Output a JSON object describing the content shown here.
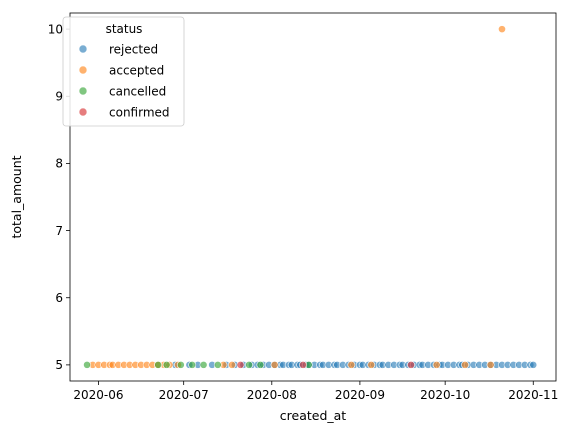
{
  "chart_data": {
    "type": "scatter",
    "xlabel": "created_at",
    "ylabel": "total_amount",
    "xlim": [
      "2020-05-22",
      "2020-11-09"
    ],
    "ylim": [
      4.76,
      10.24
    ],
    "x_ticks": [
      {
        "date": "2020-06-01",
        "label": "2020-06"
      },
      {
        "date": "2020-07-01",
        "label": "2020-07"
      },
      {
        "date": "2020-08-01",
        "label": "2020-08"
      },
      {
        "date": "2020-09-01",
        "label": "2020-09"
      },
      {
        "date": "2020-10-01",
        "label": "2020-10"
      },
      {
        "date": "2020-11-01",
        "label": "2020-11"
      }
    ],
    "y_ticks": [
      5,
      6,
      7,
      8,
      9,
      10
    ],
    "grid": false,
    "legend": {
      "title": "status",
      "placement": "top-left",
      "entries": [
        "rejected",
        "accepted",
        "cancelled",
        "confirmed"
      ]
    },
    "series": [
      {
        "name": "rejected",
        "color": "#1f77b4",
        "points": [
          {
            "x": "2020-06-28",
            "y": 5
          },
          {
            "x": "2020-07-03",
            "y": 5
          },
          {
            "x": "2020-07-06",
            "y": 5
          },
          {
            "x": "2020-07-11",
            "y": 5
          },
          {
            "x": "2020-07-16",
            "y": 5
          },
          {
            "x": "2020-07-19",
            "y": 5
          },
          {
            "x": "2020-07-22",
            "y": 5
          },
          {
            "x": "2020-07-25",
            "y": 5
          },
          {
            "x": "2020-07-27",
            "y": 5
          },
          {
            "x": "2020-07-29",
            "y": 5
          },
          {
            "x": "2020-07-31",
            "y": 5
          },
          {
            "x": "2020-08-02",
            "y": 5
          },
          {
            "x": "2020-08-04",
            "y": 5
          },
          {
            "x": "2020-08-05",
            "y": 5
          },
          {
            "x": "2020-08-07",
            "y": 5
          },
          {
            "x": "2020-08-08",
            "y": 5
          },
          {
            "x": "2020-08-10",
            "y": 5
          },
          {
            "x": "2020-08-11",
            "y": 5
          },
          {
            "x": "2020-08-13",
            "y": 5
          },
          {
            "x": "2020-08-14",
            "y": 5
          },
          {
            "x": "2020-08-16",
            "y": 5
          },
          {
            "x": "2020-08-18",
            "y": 5
          },
          {
            "x": "2020-08-19",
            "y": 5
          },
          {
            "x": "2020-08-21",
            "y": 5
          },
          {
            "x": "2020-08-23",
            "y": 5
          },
          {
            "x": "2020-08-24",
            "y": 5
          },
          {
            "x": "2020-08-26",
            "y": 5
          },
          {
            "x": "2020-08-28",
            "y": 5
          },
          {
            "x": "2020-08-30",
            "y": 5
          },
          {
            "x": "2020-09-01",
            "y": 5
          },
          {
            "x": "2020-09-02",
            "y": 5
          },
          {
            "x": "2020-09-04",
            "y": 5
          },
          {
            "x": "2020-09-06",
            "y": 5
          },
          {
            "x": "2020-09-08",
            "y": 5
          },
          {
            "x": "2020-09-09",
            "y": 5
          },
          {
            "x": "2020-09-11",
            "y": 5
          },
          {
            "x": "2020-09-13",
            "y": 5
          },
          {
            "x": "2020-09-15",
            "y": 5
          },
          {
            "x": "2020-09-16",
            "y": 5
          },
          {
            "x": "2020-09-18",
            "y": 5
          },
          {
            "x": "2020-09-20",
            "y": 5
          },
          {
            "x": "2020-09-22",
            "y": 5
          },
          {
            "x": "2020-09-23",
            "y": 5
          },
          {
            "x": "2020-09-25",
            "y": 5
          },
          {
            "x": "2020-09-27",
            "y": 5
          },
          {
            "x": "2020-09-29",
            "y": 5
          },
          {
            "x": "2020-09-30",
            "y": 5
          },
          {
            "x": "2020-10-02",
            "y": 5
          },
          {
            "x": "2020-10-04",
            "y": 5
          },
          {
            "x": "2020-10-06",
            "y": 5
          },
          {
            "x": "2020-10-07",
            "y": 5
          },
          {
            "x": "2020-10-09",
            "y": 5
          },
          {
            "x": "2020-10-11",
            "y": 5
          },
          {
            "x": "2020-10-13",
            "y": 5
          },
          {
            "x": "2020-10-15",
            "y": 5
          },
          {
            "x": "2020-10-17",
            "y": 5
          },
          {
            "x": "2020-10-19",
            "y": 5
          },
          {
            "x": "2020-10-21",
            "y": 5
          },
          {
            "x": "2020-10-23",
            "y": 5
          },
          {
            "x": "2020-10-25",
            "y": 5
          },
          {
            "x": "2020-10-27",
            "y": 5
          },
          {
            "x": "2020-10-29",
            "y": 5
          },
          {
            "x": "2020-10-31",
            "y": 5
          },
          {
            "x": "2020-11-01",
            "y": 5
          }
        ]
      },
      {
        "name": "accepted",
        "color": "#ff7f0e",
        "points": [
          {
            "x": "2020-05-30",
            "y": 5
          },
          {
            "x": "2020-06-01",
            "y": 5
          },
          {
            "x": "2020-06-03",
            "y": 5
          },
          {
            "x": "2020-06-05",
            "y": 5
          },
          {
            "x": "2020-06-06",
            "y": 5
          },
          {
            "x": "2020-06-08",
            "y": 5
          },
          {
            "x": "2020-06-10",
            "y": 5
          },
          {
            "x": "2020-06-12",
            "y": 5
          },
          {
            "x": "2020-06-14",
            "y": 5
          },
          {
            "x": "2020-06-16",
            "y": 5
          },
          {
            "x": "2020-06-18",
            "y": 5
          },
          {
            "x": "2020-06-20",
            "y": 5
          },
          {
            "x": "2020-06-22",
            "y": 5
          },
          {
            "x": "2020-06-24",
            "y": 5
          },
          {
            "x": "2020-06-26",
            "y": 5
          },
          {
            "x": "2020-06-29",
            "y": 5
          },
          {
            "x": "2020-07-15",
            "y": 5
          },
          {
            "x": "2020-07-18",
            "y": 5
          },
          {
            "x": "2020-08-02",
            "y": 5
          },
          {
            "x": "2020-08-29",
            "y": 5
          },
          {
            "x": "2020-09-05",
            "y": 5
          },
          {
            "x": "2020-09-28",
            "y": 5
          },
          {
            "x": "2020-10-08",
            "y": 5
          },
          {
            "x": "2020-10-17",
            "y": 5
          },
          {
            "x": "2020-10-21",
            "y": 10
          }
        ]
      },
      {
        "name": "cancelled",
        "color": "#2ca02c",
        "points": [
          {
            "x": "2020-05-28",
            "y": 5
          },
          {
            "x": "2020-06-22",
            "y": 5
          },
          {
            "x": "2020-06-25",
            "y": 5
          },
          {
            "x": "2020-06-30",
            "y": 5
          },
          {
            "x": "2020-07-04",
            "y": 5
          },
          {
            "x": "2020-07-08",
            "y": 5
          },
          {
            "x": "2020-07-13",
            "y": 5
          },
          {
            "x": "2020-07-24",
            "y": 5
          },
          {
            "x": "2020-07-28",
            "y": 5
          },
          {
            "x": "2020-08-14",
            "y": 5
          }
        ]
      },
      {
        "name": "confirmed",
        "color": "#d62728",
        "points": [
          {
            "x": "2020-07-21",
            "y": 5
          },
          {
            "x": "2020-08-12",
            "y": 5
          },
          {
            "x": "2020-09-19",
            "y": 5
          }
        ]
      }
    ]
  }
}
